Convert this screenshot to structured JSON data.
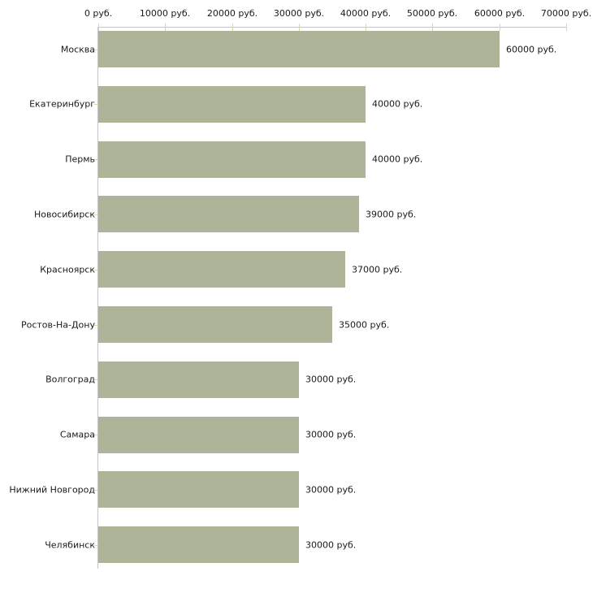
{
  "chart": {
    "bar_color": "#adb497",
    "axis_line_color": "#c4c4c4",
    "tick_color": "#d8d9b6",
    "text_color": "#1a1a1a",
    "background_color": "#ffffff"
  },
  "chart_data": {
    "type": "bar",
    "orientation": "horizontal",
    "title": "",
    "xlabel": "",
    "ylabel": "",
    "grid": false,
    "legend": false,
    "categories": [
      "Москва",
      "Екатеринбург",
      "Пермь",
      "Новосибирск",
      "Красноярск",
      "Ростов-На-Дону",
      "Волгоград",
      "Самара",
      "Нижний Новгород",
      "Челябинск"
    ],
    "values": [
      60000,
      40000,
      40000,
      39000,
      37000,
      35000,
      30000,
      30000,
      30000,
      30000
    ],
    "value_labels": [
      "60000 руб.",
      "40000 руб.",
      "40000 руб.",
      "39000 руб.",
      "37000 руб.",
      "35000 руб.",
      "30000 руб.",
      "30000 руб.",
      "30000 руб.",
      "30000 руб."
    ],
    "x_axis": {
      "position": "top",
      "range": [
        0,
        70000
      ],
      "ticks": [
        0,
        10000,
        20000,
        30000,
        40000,
        50000,
        60000,
        70000
      ],
      "tick_labels": [
        "0 руб.",
        "10000 руб.",
        "20000 руб.",
        "30000 руб.",
        "40000 руб.",
        "50000 руб.",
        "60000 руб.",
        "70000 руб."
      ]
    }
  }
}
